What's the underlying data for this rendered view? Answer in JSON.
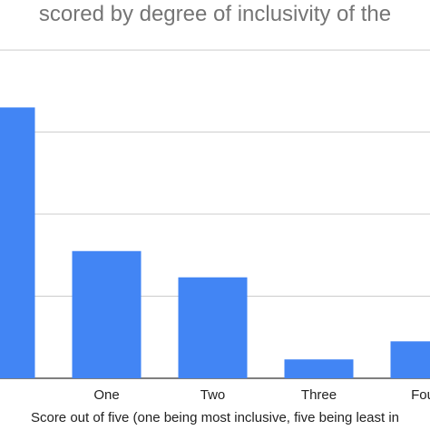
{
  "chart_data": {
    "type": "bar",
    "title": "scored by degree of inclusivity of the",
    "xlabel": "Score out of five (one being most inclusive, five being least in",
    "ylabel": "",
    "categories": [
      "",
      "One",
      "Two",
      "Three",
      "Four"
    ],
    "values": [
      3.3,
      1.55,
      1.23,
      0.23,
      0.45
    ],
    "ylim": [
      0,
      4.2
    ],
    "gridlines": [
      0,
      1,
      2,
      3,
      4
    ],
    "grid": true,
    "legend": "none",
    "colors": {
      "bar": "#4285f4",
      "grid": "#cccccc",
      "baseline": "#333333",
      "title": "#757575",
      "text": "#222222"
    }
  }
}
